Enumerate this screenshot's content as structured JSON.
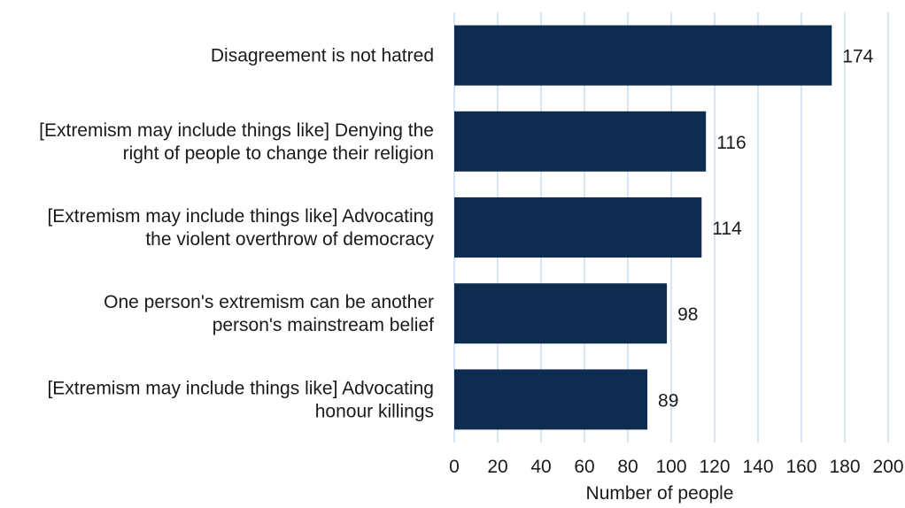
{
  "chart_data": {
    "type": "bar",
    "orientation": "horizontal",
    "categories": [
      [
        "Disagreement is not hatred"
      ],
      [
        "[Extremism may include things like] Denying the",
        "right of people to change their religion"
      ],
      [
        "[Extremism may include things like] Advocating",
        "the violent overthrow of democracy"
      ],
      [
        "One person's extremism can be another",
        "person's mainstream belief"
      ],
      [
        "[Extremism may include things like] Advocating",
        "honour killings"
      ]
    ],
    "values": [
      174,
      116,
      114,
      98,
      89
    ],
    "data_labels": [
      "174",
      "116",
      "114",
      "98",
      "89"
    ],
    "xlabel": "Number of people",
    "xlim": [
      0,
      200
    ],
    "xticks": [
      0,
      20,
      40,
      60,
      80,
      100,
      120,
      140,
      160,
      180,
      200
    ],
    "xtick_labels": [
      "0",
      "20",
      "40",
      "60",
      "80",
      "100",
      "120",
      "140",
      "160",
      "180",
      "200"
    ],
    "grid": "vertical",
    "legend": "none",
    "colors": {
      "bar": "#0e2b50",
      "grid": "#c9def0",
      "text": "#1a1a1a"
    }
  }
}
